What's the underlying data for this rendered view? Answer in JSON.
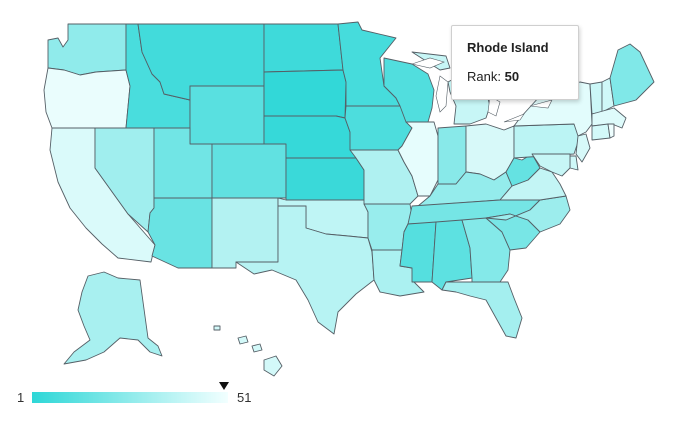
{
  "map": {
    "kind": "US states choropleth",
    "color_min": "#2ed7d7",
    "color_max": "#f2ffff",
    "states": [
      {
        "id": "WA",
        "rank": 26
      },
      {
        "id": "OR",
        "rank": 49
      },
      {
        "id": "CA",
        "rank": 45
      },
      {
        "id": "NV",
        "rank": 30
      },
      {
        "id": "ID",
        "rank": 8
      },
      {
        "id": "MT",
        "rank": 6
      },
      {
        "id": "WY",
        "rank": 12
      },
      {
        "id": "UT",
        "rank": 18
      },
      {
        "id": "AZ",
        "rank": 16
      },
      {
        "id": "CO",
        "rank": 14
      },
      {
        "id": "NM",
        "rank": 35
      },
      {
        "id": "ND",
        "rank": 5
      },
      {
        "id": "SD",
        "rank": 2
      },
      {
        "id": "NE",
        "rank": 3
      },
      {
        "id": "KS",
        "rank": 4
      },
      {
        "id": "OK",
        "rank": 38
      },
      {
        "id": "TX",
        "rank": 36
      },
      {
        "id": "MN",
        "rank": 7
      },
      {
        "id": "IA",
        "rank": 9
      },
      {
        "id": "MO",
        "rank": 34
      },
      {
        "id": "AR",
        "rank": 28
      },
      {
        "id": "LA",
        "rank": 33
      },
      {
        "id": "WI",
        "rank": 10
      },
      {
        "id": "IL",
        "rank": 48
      },
      {
        "id": "MI",
        "rank": 40
      },
      {
        "id": "IN",
        "rank": 24
      },
      {
        "id": "OH",
        "rank": 44
      },
      {
        "id": "KY",
        "rank": 27
      },
      {
        "id": "TN",
        "rank": 19
      },
      {
        "id": "MS",
        "rank": 11
      },
      {
        "id": "AL",
        "rank": 13
      },
      {
        "id": "GA",
        "rank": 23
      },
      {
        "id": "FL",
        "rank": 31
      },
      {
        "id": "SC",
        "rank": 20
      },
      {
        "id": "NC",
        "rank": 29
      },
      {
        "id": "VA",
        "rank": 39
      },
      {
        "id": "WV",
        "rank": 15
      },
      {
        "id": "PA",
        "rank": 37
      },
      {
        "id": "NY",
        "rank": 47
      },
      {
        "id": "VT",
        "rank": 41
      },
      {
        "id": "NH",
        "rank": 42
      },
      {
        "id": "ME",
        "rank": 22
      },
      {
        "id": "MA",
        "rank": 46
      },
      {
        "id": "CT",
        "rank": 43
      },
      {
        "id": "RI",
        "rank": 50
      },
      {
        "id": "NJ",
        "rank": 44
      },
      {
        "id": "DE",
        "rank": 42
      },
      {
        "id": "MD",
        "rank": 40
      },
      {
        "id": "AK",
        "rank": 32
      },
      {
        "id": "HI",
        "rank": 43
      }
    ]
  },
  "tooltip": {
    "title": "Rhode Island",
    "label": "Rank:",
    "value": "50"
  },
  "legend": {
    "min_label": "1",
    "max_label": "51",
    "marker_value": 50
  }
}
